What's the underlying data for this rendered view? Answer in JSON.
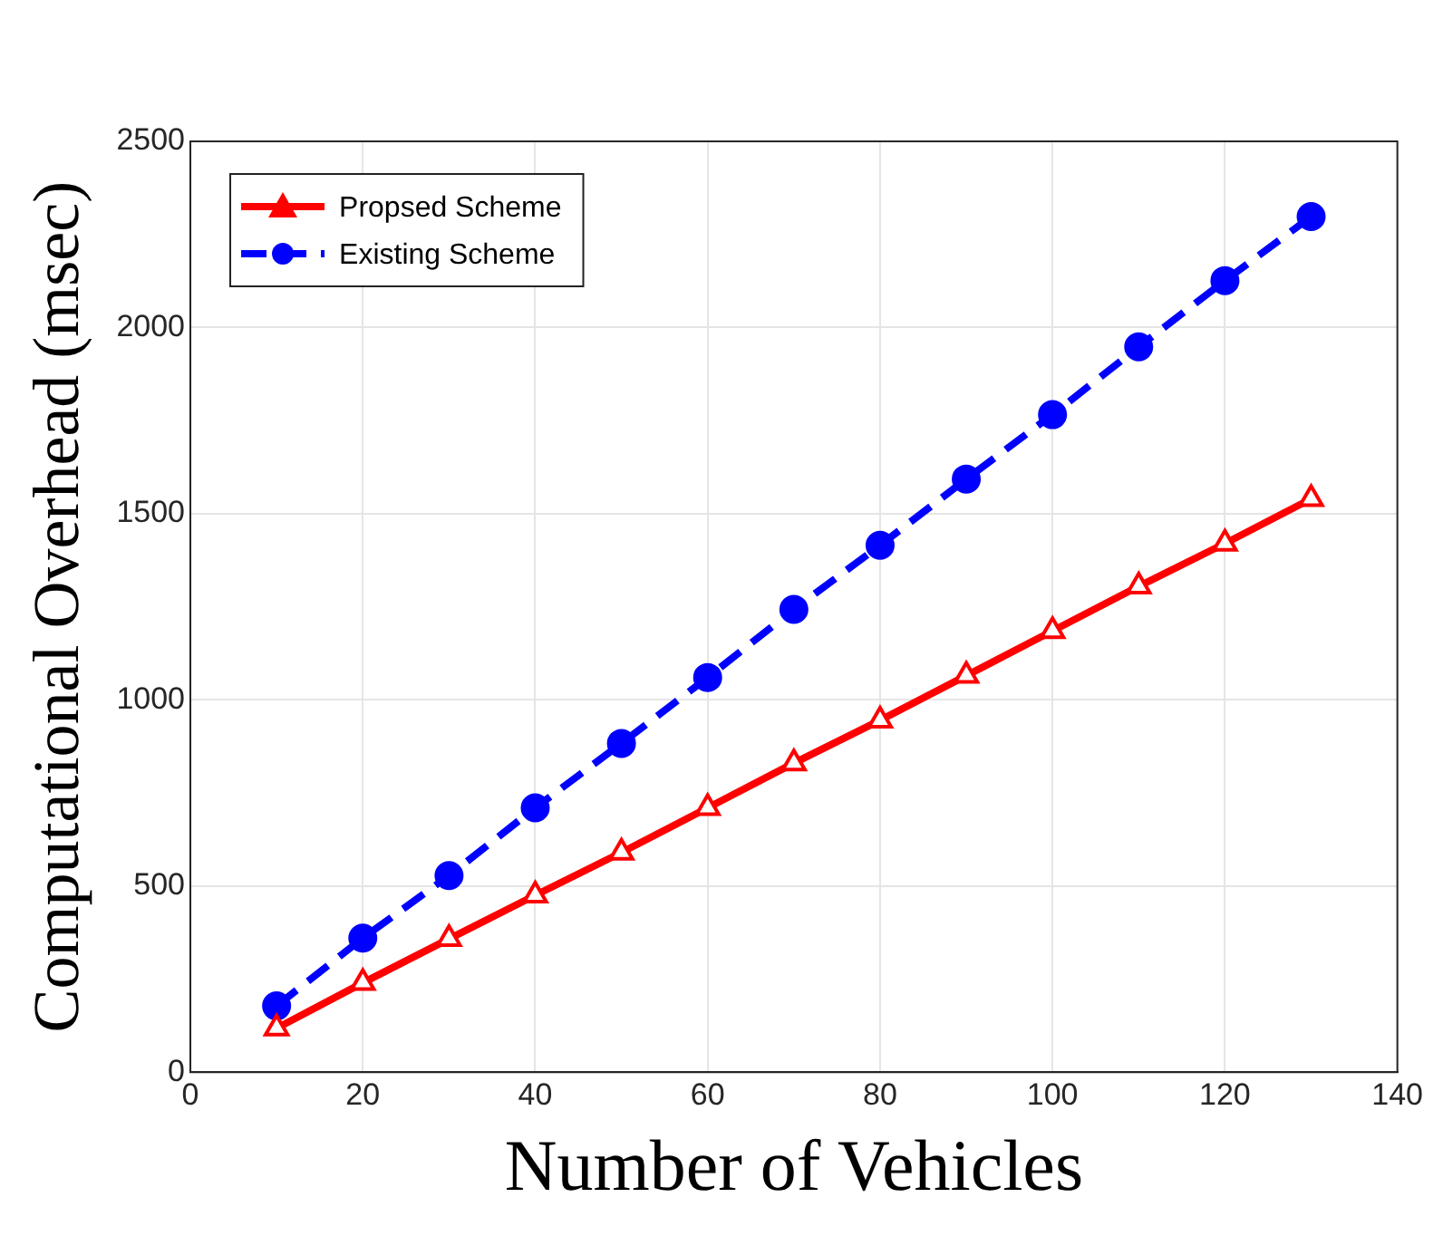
{
  "chart_data": {
    "type": "line",
    "xlabel": "Number of Vehicles",
    "ylabel": "Computational Overhead (msec)",
    "x": [
      10,
      20,
      30,
      40,
      50,
      60,
      70,
      80,
      90,
      100,
      110,
      120,
      130
    ],
    "series": [
      {
        "name": "Propsed Scheme",
        "color": "#ff0000",
        "marker": "triangle",
        "line_style": "solid",
        "values": [
          118,
          240,
          358,
          475,
          590,
          710,
          830,
          945,
          1065,
          1185,
          1305,
          1420,
          1540
        ]
      },
      {
        "name": "Existing Scheme",
        "color": "#0000ff",
        "marker": "circle",
        "line_style": "dashed",
        "values": [
          178,
          360,
          528,
          710,
          883,
          1060,
          1243,
          1415,
          1593,
          1766,
          1948,
          2126,
          2298
        ]
      }
    ],
    "xlim": [
      0,
      140
    ],
    "xticks": [
      0,
      20,
      40,
      60,
      80,
      100,
      120,
      140
    ],
    "ylim": [
      0,
      2500
    ],
    "yticks": [
      0,
      500,
      1000,
      1500,
      2000,
      2500
    ],
    "grid": true,
    "legend": "top left"
  }
}
